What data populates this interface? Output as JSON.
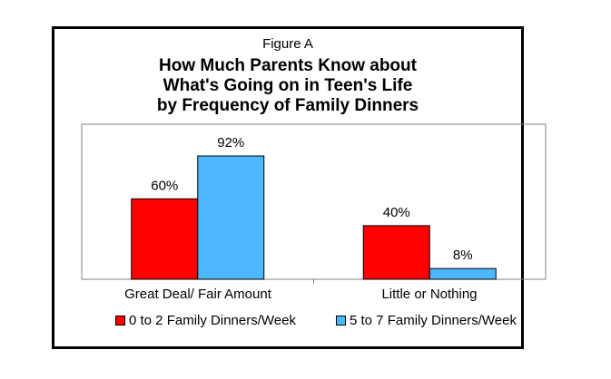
{
  "figure_label": "Figure A",
  "title_lines": [
    "How Much Parents Know about",
    "What's Going on in Teen's Life",
    "by Frequency of Family Dinners"
  ],
  "colors": {
    "series_1": "#ff0000",
    "series_2": "#4db8ff",
    "frame": "#000000",
    "plot_border": "#808080"
  },
  "chart_data": {
    "type": "bar",
    "title": "How Much Parents Know about What's Going on in Teen's Life by Frequency of Family Dinners",
    "categories": [
      "Great Deal/ Fair Amount",
      "Little or Nothing"
    ],
    "series": [
      {
        "name": "0 to 2 Family Dinners/Week",
        "values": [
          60,
          40
        ],
        "labels": [
          "60%",
          "40%"
        ],
        "color": "#ff0000"
      },
      {
        "name": "5 to 7 Family Dinners/Week",
        "values": [
          92,
          8
        ],
        "labels": [
          "92%",
          "8%"
        ],
        "color": "#4db8ff"
      }
    ],
    "ylim": [
      0,
      100
    ],
    "grid": false,
    "legend": "bottom"
  }
}
